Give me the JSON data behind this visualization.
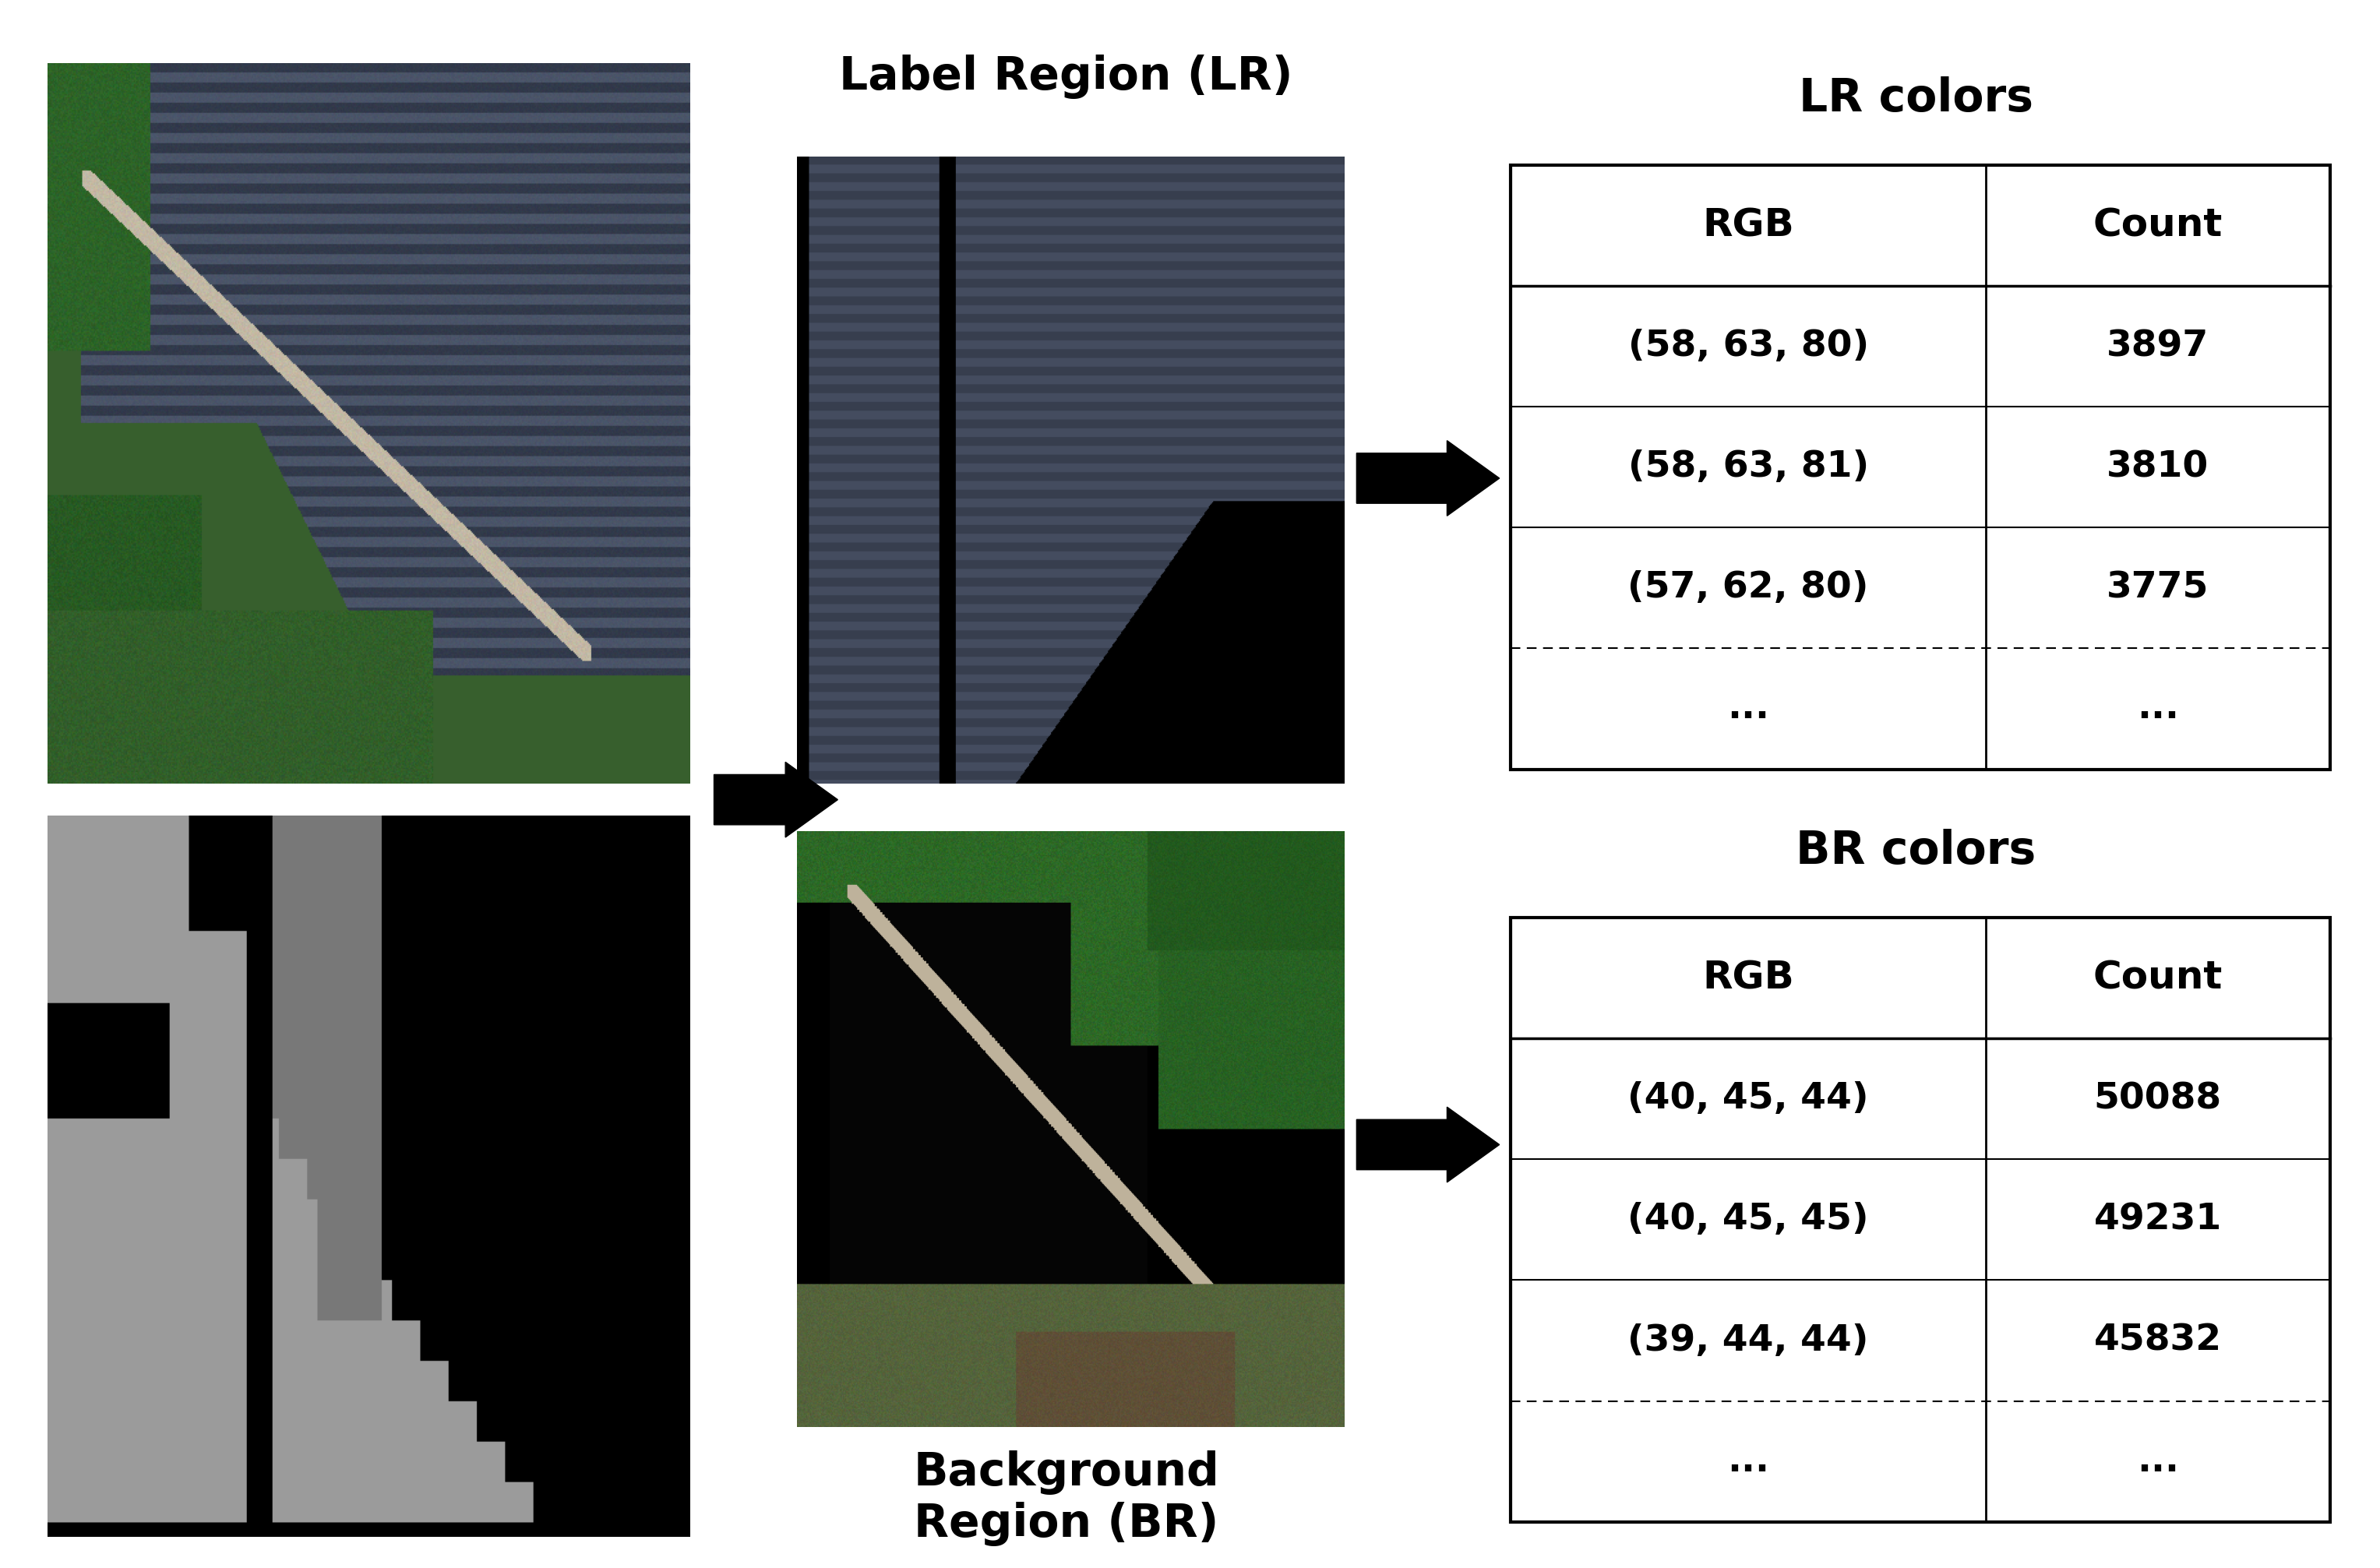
{
  "title_lr": "Label Region (LR)",
  "title_br": "Background\nRegion (BR)",
  "title_lr_colors": "LR colors",
  "title_br_colors": "BR colors",
  "lr_table_headers": [
    "RGB",
    "Count"
  ],
  "lr_table_rows": [
    [
      "(58, 63, 80)",
      "3897"
    ],
    [
      "(58, 63, 81)",
      "3810"
    ],
    [
      "(57, 62, 80)",
      "3775"
    ],
    [
      "...",
      "..."
    ]
  ],
  "br_table_headers": [
    "RGB",
    "Count"
  ],
  "br_table_rows": [
    [
      "(40, 45, 44)",
      "50088"
    ],
    [
      "(40, 45, 45)",
      "49231"
    ],
    [
      "(39, 44, 44)",
      "45832"
    ],
    [
      "...",
      "..."
    ]
  ],
  "bg_color": "#ffffff",
  "text_color": "#000000",
  "title_fontsize": 42,
  "table_header_fontsize": 36,
  "table_data_fontsize": 34,
  "label_br_fontsize": 42
}
